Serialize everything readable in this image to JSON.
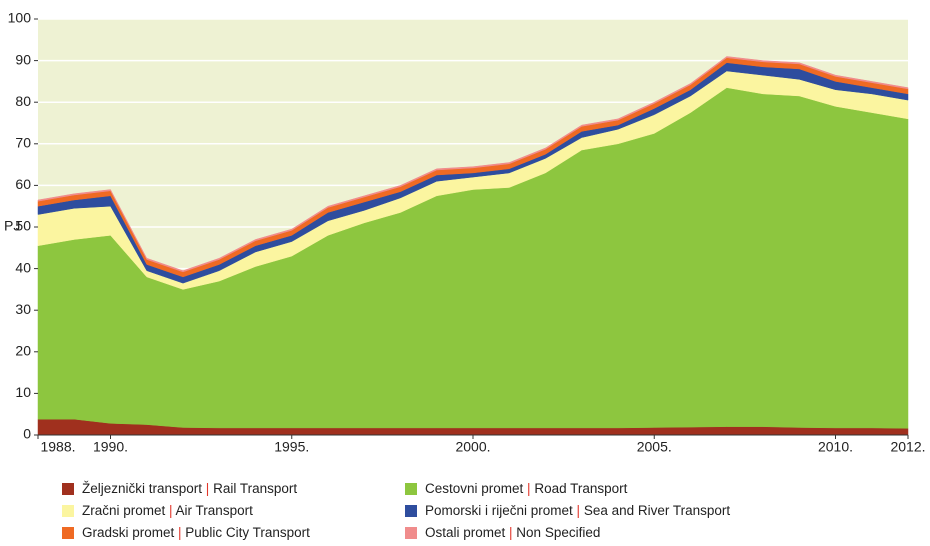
{
  "chart_data": {
    "type": "stacked_area",
    "ylabel": "PJ",
    "x": [
      1988,
      1989,
      1990,
      1991,
      1992,
      1993,
      1994,
      1995,
      1996,
      1997,
      1998,
      1999,
      2000,
      2001,
      2002,
      2003,
      2004,
      2005,
      2006,
      2007,
      2008,
      2009,
      2010,
      2011,
      2012
    ],
    "xlim": [
      1988,
      2012
    ],
    "xticks": [
      {
        "value": 1988,
        "label": "1988."
      },
      {
        "value": 1990,
        "label": "1990."
      },
      {
        "value": 1995,
        "label": "1995."
      },
      {
        "value": 2000,
        "label": "2000."
      },
      {
        "value": 2005,
        "label": "2005."
      },
      {
        "value": 2010,
        "label": "2010."
      },
      {
        "value": 2012,
        "label": "2012."
      }
    ],
    "ylim": [
      0,
      100
    ],
    "yticks": [
      0,
      10,
      20,
      30,
      40,
      50,
      60,
      70,
      80,
      90,
      100
    ],
    "grid": true,
    "series": [
      {
        "name": "Željeznički transport | Rail Transport",
        "color": "#a0301e",
        "values": [
          3.8,
          3.8,
          2.8,
          2.5,
          1.8,
          1.7,
          1.7,
          1.7,
          1.7,
          1.7,
          1.7,
          1.7,
          1.7,
          1.7,
          1.7,
          1.7,
          1.7,
          1.8,
          1.9,
          2,
          2,
          1.8,
          1.7,
          1.7,
          1.6
        ]
      },
      {
        "name": "Cestovni promet | Road Transport",
        "color": "#8dc63f",
        "values": [
          41.7,
          43.2,
          45.2,
          35.5,
          33.2,
          35.3,
          38.8,
          41.3,
          46.3,
          49.3,
          51.8,
          55.8,
          57.3,
          57.8,
          61.3,
          66.8,
          68.3,
          70.7,
          75.6,
          81.5,
          80,
          79.7,
          77.3,
          75.8,
          74.4
        ]
      },
      {
        "name": "Zračni promet | Air Transport",
        "color": "#fbf5a0",
        "values": [
          7.5,
          7.5,
          7,
          1.5,
          1.5,
          2.5,
          3.5,
          3.5,
          3.5,
          3,
          3.5,
          3.5,
          3,
          3.5,
          3.5,
          3,
          3.5,
          4.5,
          4,
          4,
          4.5,
          4,
          4,
          4.5,
          4.5
        ]
      },
      {
        "name": "Pomorski i riječni promet | Sea and River Transport",
        "color": "#2e4d9e",
        "values": [
          2,
          2,
          2.5,
          1.5,
          1.5,
          1.5,
          1.5,
          1.5,
          2,
          2,
          1.5,
          1.5,
          1,
          1,
          1,
          1.5,
          1,
          1.5,
          1.5,
          2,
          2,
          2.5,
          2,
          1.5,
          1.5
        ]
      },
      {
        "name": "Gradski promet | Public City Transport",
        "color": "#ef6a23",
        "values": [
          1.2,
          1.2,
          1.2,
          1.2,
          1.2,
          1.2,
          1.2,
          1.2,
          1.2,
          1.2,
          1.2,
          1.2,
          1.2,
          1.2,
          1.2,
          1.2,
          1.2,
          1.2,
          1.2,
          1.2,
          1.2,
          1.2,
          1.2,
          1.2,
          1.2
        ]
      },
      {
        "name": "Ostali promet | Non Specified",
        "color": "#f08c8c",
        "values": [
          0.3,
          0.3,
          0.3,
          0.3,
          0.3,
          0.3,
          0.3,
          0.3,
          0.3,
          0.3,
          0.3,
          0.3,
          0.3,
          0.3,
          0.3,
          0.3,
          0.3,
          0.3,
          0.3,
          0.3,
          0.3,
          0.3,
          0.3,
          0.3,
          0.3
        ]
      }
    ]
  }
}
